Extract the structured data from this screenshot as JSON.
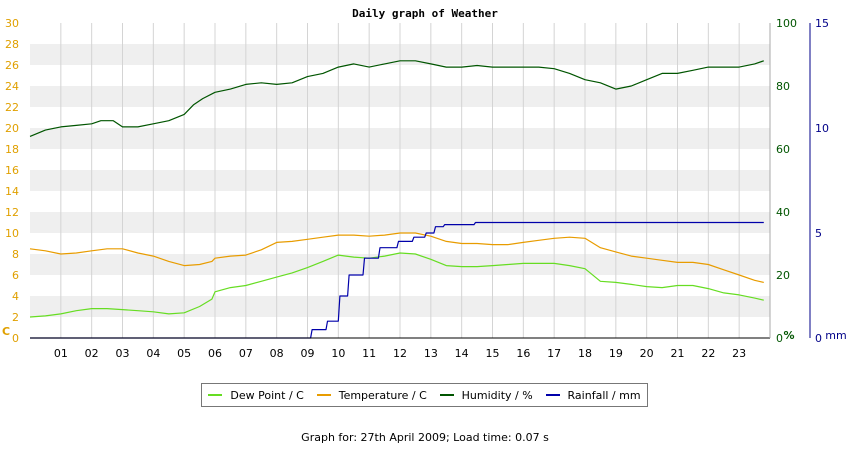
{
  "chart_data": {
    "type": "line",
    "title": "Daily graph of Weather",
    "x_tick_labels": [
      "01",
      "02",
      "03",
      "04",
      "05",
      "06",
      "07",
      "08",
      "09",
      "10",
      "11",
      "12",
      "13",
      "14",
      "15",
      "16",
      "17",
      "18",
      "19",
      "20",
      "21",
      "22",
      "23"
    ],
    "x_range": [
      0,
      24
    ],
    "grid": true,
    "axes": {
      "left": {
        "label": "C",
        "min": 0,
        "max": 30,
        "ticks": [
          0,
          2,
          4,
          6,
          8,
          10,
          12,
          14,
          16,
          18,
          20,
          22,
          24,
          26,
          28,
          30
        ],
        "color": "#e0a000"
      },
      "right1": {
        "label": "%",
        "min": 0,
        "max": 100,
        "ticks": [
          0,
          20,
          40,
          60,
          80,
          100
        ],
        "color": "#005500"
      },
      "right2": {
        "label": "mm",
        "min": 0,
        "max": 15,
        "ticks": [
          0,
          5,
          10,
          15
        ],
        "color": "#000088"
      }
    },
    "series": [
      {
        "name": "Dew Point / C",
        "axis": "left",
        "color": "#66dd22",
        "x": [
          0,
          0.5,
          1,
          1.5,
          2,
          2.5,
          3,
          3.5,
          4,
          4.5,
          5,
          5.5,
          5.9,
          6,
          6.5,
          7,
          7.5,
          8,
          8.5,
          9,
          9.5,
          10,
          10.5,
          11,
          11.5,
          12,
          12.5,
          13,
          13.5,
          14,
          14.5,
          15,
          15.5,
          16,
          16.5,
          17,
          17.5,
          18,
          18.5,
          19,
          19.5,
          20,
          20.5,
          21,
          21.5,
          22,
          22.5,
          23,
          23.5,
          23.8
        ],
        "values": [
          2.0,
          2.1,
          2.3,
          2.6,
          2.8,
          2.8,
          2.7,
          2.6,
          2.5,
          2.3,
          2.4,
          3.0,
          3.7,
          4.4,
          4.8,
          5.0,
          5.4,
          5.8,
          6.2,
          6.7,
          7.3,
          7.9,
          7.7,
          7.6,
          7.8,
          8.1,
          8.0,
          7.5,
          6.9,
          6.8,
          6.8,
          6.9,
          7.0,
          7.1,
          7.1,
          7.1,
          6.9,
          6.6,
          5.4,
          5.3,
          5.1,
          4.9,
          4.8,
          5.0,
          5.0,
          4.7,
          4.3,
          4.1,
          3.8,
          3.6
        ]
      },
      {
        "name": "Temperature / C",
        "axis": "left",
        "color": "#e89c00",
        "x": [
          0,
          0.5,
          1,
          1.5,
          2,
          2.5,
          3,
          3.5,
          4,
          4.5,
          5,
          5.5,
          5.9,
          6,
          6.5,
          7,
          7.5,
          8,
          8.5,
          9,
          9.5,
          10,
          10.5,
          11,
          11.5,
          12,
          12.5,
          13,
          13.5,
          14,
          14.5,
          15,
          15.5,
          16,
          16.5,
          17,
          17.5,
          18,
          18.5,
          19,
          19.5,
          20,
          20.5,
          21,
          21.5,
          22,
          22.5,
          23,
          23.5,
          23.8
        ],
        "values": [
          8.5,
          8.3,
          8.0,
          8.1,
          8.3,
          8.5,
          8.5,
          8.1,
          7.8,
          7.3,
          6.9,
          7.0,
          7.3,
          7.6,
          7.8,
          7.9,
          8.4,
          9.1,
          9.2,
          9.4,
          9.6,
          9.8,
          9.8,
          9.7,
          9.8,
          10.0,
          10.0,
          9.7,
          9.2,
          9.0,
          9.0,
          8.9,
          8.9,
          9.1,
          9.3,
          9.5,
          9.6,
          9.5,
          8.6,
          8.2,
          7.8,
          7.6,
          7.4,
          7.2,
          7.2,
          7.0,
          6.5,
          6.0,
          5.5,
          5.3
        ]
      },
      {
        "name": "Humidity / %",
        "axis": "right1",
        "color": "#005500",
        "x": [
          0,
          0.5,
          1,
          1.5,
          2,
          2.3,
          2.7,
          3,
          3.5,
          4,
          4.5,
          5,
          5.3,
          5.6,
          6,
          6.5,
          7,
          7.5,
          8,
          8.5,
          9,
          9.5,
          10,
          10.5,
          11,
          11.5,
          12,
          12.5,
          13,
          13.5,
          14,
          14.5,
          15,
          15.5,
          16,
          16.5,
          17,
          17.5,
          18,
          18.5,
          19,
          19.5,
          20,
          20.5,
          21,
          21.5,
          22,
          22.5,
          23,
          23.5,
          23.8
        ],
        "values": [
          64,
          66,
          67,
          67.5,
          68,
          69,
          69,
          67,
          67,
          68,
          69,
          71,
          74,
          76,
          78,
          79,
          80.5,
          81,
          80.5,
          81,
          83,
          84,
          86,
          87,
          86,
          87,
          88,
          88,
          87,
          86,
          86,
          86.5,
          86,
          86,
          86,
          86,
          85.5,
          84,
          82,
          81,
          79,
          80,
          82,
          84,
          84,
          85,
          86,
          86,
          86,
          87,
          88
        ]
      },
      {
        "name": "Rainfall / mm",
        "axis": "right2",
        "color": "#0000aa",
        "x": [
          0,
          9.1,
          9.15,
          9.6,
          9.65,
          10.0,
          10.05,
          10.3,
          10.35,
          10.8,
          10.85,
          11.3,
          11.35,
          11.9,
          11.95,
          12.4,
          12.45,
          12.8,
          12.85,
          13.1,
          13.15,
          13.4,
          13.45,
          14.4,
          14.45,
          23.8
        ],
        "values": [
          0,
          0,
          0.4,
          0.4,
          0.8,
          0.8,
          2.0,
          2.0,
          3.0,
          3.0,
          3.8,
          3.8,
          4.3,
          4.3,
          4.6,
          4.6,
          4.8,
          4.8,
          5.0,
          5.0,
          5.3,
          5.3,
          5.4,
          5.4,
          5.5,
          5.5
        ]
      }
    ]
  },
  "footer": {
    "text": "Graph for: 27th April 2009; Load time: 0.07 s"
  }
}
